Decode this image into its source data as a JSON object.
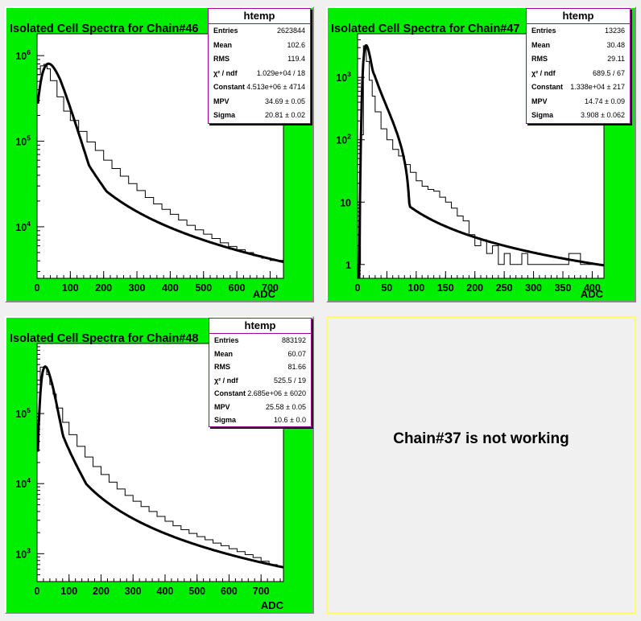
{
  "canvas": {
    "background": "#f0f0f0",
    "pad_color": "#00ee00",
    "frame_color": "#ffffff",
    "curve_color": "#000000",
    "statbox_border": "#a000a0"
  },
  "chart_data": [
    {
      "type": "histogram",
      "title": "Isolated Cell Spectra for Chain#46",
      "xlabel": "ADC",
      "xlim": [
        0,
        740
      ],
      "xticks": [
        0,
        100,
        200,
        300,
        400,
        500,
        600,
        700
      ],
      "xtick_labels": [
        "0",
        "100",
        "200",
        "300",
        "400",
        "500",
        "600",
        "700"
      ],
      "yscale": "log",
      "ylim": [
        2500,
        1800000
      ],
      "yticks": [
        10000,
        100000,
        1000000
      ],
      "ytick_labels": [
        "10^4",
        "10^5",
        "10^6"
      ],
      "hist_bins": [
        0,
        10,
        20,
        30,
        40,
        60,
        80,
        100,
        125,
        150,
        175,
        200,
        225,
        250,
        275,
        300,
        325,
        350,
        375,
        400,
        425,
        450,
        475,
        500,
        525,
        550,
        575,
        600,
        625,
        650,
        675,
        700,
        740
      ],
      "hist_counts": [
        600000,
        760000,
        790000,
        700000,
        510000,
        330000,
        225000,
        175000,
        130000,
        98000,
        78000,
        60000,
        48000,
        39000,
        32000,
        26500,
        22000,
        18500,
        16000,
        14000,
        12000,
        10400,
        9200,
        8200,
        7300,
        6500,
        5900,
        5400,
        5000,
        4600,
        4300,
        4050
      ],
      "fit": {
        "function": "landau",
        "constant": 4513000,
        "mpv": 34.69,
        "sigma": 20.81,
        "tail_coefficient": 0.75
      },
      "stats": {
        "title": "htemp",
        "rows": [
          {
            "label": "Entries",
            "value": "2623844"
          },
          {
            "label": "Mean",
            "value": "102.6"
          },
          {
            "label": "RMS",
            "value": "119.4"
          },
          {
            "label": "χ² / ndf",
            "value": "1.029e+04 / 18"
          },
          {
            "label": "Constant",
            "value": "4.513e+06 ± 4714"
          },
          {
            "label": "MPV",
            "value": "34.69 ± 0.05"
          },
          {
            "label": "Sigma",
            "value": "20.81 ± 0.02"
          }
        ]
      }
    },
    {
      "type": "histogram",
      "title": "Isolated Cell Spectra for Chain#47",
      "xlabel": "ADC",
      "xlim": [
        0,
        420
      ],
      "xticks": [
        0,
        50,
        100,
        150,
        200,
        250,
        300,
        350,
        400
      ],
      "xtick_labels": [
        "0",
        "50",
        "100",
        "150",
        "200",
        "250",
        "300",
        "350",
        "400"
      ],
      "yscale": "log",
      "ylim": [
        0.6,
        5000
      ],
      "yticks": [
        1,
        10,
        100,
        1000
      ],
      "ytick_labels": [
        "1",
        "10",
        "10^2",
        "10^3"
      ],
      "hist_bins": [
        0,
        5,
        10,
        15,
        20,
        25,
        30,
        40,
        50,
        60,
        70,
        80,
        90,
        100,
        110,
        120,
        130,
        140,
        150,
        160,
        170,
        180,
        190,
        200,
        210,
        220,
        230,
        240,
        250,
        260,
        270,
        280,
        290,
        300,
        320,
        340,
        360,
        380,
        400,
        420
      ],
      "hist_counts": [
        1.0,
        120,
        3200,
        1800,
        900,
        500,
        280,
        150,
        100,
        70,
        55,
        40,
        30,
        22,
        18,
        16,
        15,
        12,
        10,
        8,
        6,
        5,
        3,
        2,
        2.5,
        1.5,
        2,
        1,
        1.5,
        1,
        1,
        1.5,
        1,
        1,
        1,
        1,
        1.5,
        1,
        1
      ],
      "fit": {
        "function": "landau",
        "constant": 13380,
        "mpv": 14.74,
        "sigma": 3.908,
        "tail_coefficient": 0.7
      },
      "stats": {
        "title": "htemp",
        "rows": [
          {
            "label": "Entries",
            "value": "13236"
          },
          {
            "label": "Mean",
            "value": "30.48"
          },
          {
            "label": "RMS",
            "value": "29.11"
          },
          {
            "label": "χ² / ndf",
            "value": "689.5 / 67"
          },
          {
            "label": "Constant",
            "value": "1.338e+04 ± 217"
          },
          {
            "label": "MPV",
            "value": "14.74 ± 0.09"
          },
          {
            "label": "Sigma",
            "value": "3.908 ± 0.062"
          }
        ]
      }
    },
    {
      "type": "histogram",
      "title": "Isolated Cell Spectra for Chain#48",
      "xlabel": "ADC",
      "xlim": [
        0,
        770
      ],
      "xticks": [
        0,
        100,
        200,
        300,
        400,
        500,
        600,
        700
      ],
      "xtick_labels": [
        "0",
        "100",
        "200",
        "300",
        "400",
        "500",
        "600",
        "700"
      ],
      "yscale": "log",
      "ylim": [
        400,
        1000000
      ],
      "yticks": [
        1000,
        10000,
        100000
      ],
      "ytick_labels": [
        "10^3",
        "10^4",
        "10^5"
      ],
      "hist_bins": [
        0,
        10,
        20,
        30,
        40,
        50,
        60,
        80,
        100,
        125,
        150,
        175,
        200,
        225,
        250,
        275,
        300,
        325,
        350,
        375,
        400,
        425,
        450,
        475,
        500,
        525,
        550,
        575,
        600,
        625,
        650,
        675,
        700,
        725,
        750,
        770
      ],
      "hist_counts": [
        260000,
        460000,
        450000,
        360000,
        260000,
        190000,
        120000,
        75000,
        50000,
        34000,
        24000,
        17500,
        13500,
        10500,
        8400,
        6800,
        5600,
        4700,
        4000,
        3400,
        2900,
        2500,
        2200,
        1950,
        1750,
        1580,
        1420,
        1300,
        1180,
        1070,
        970,
        880,
        780,
        700,
        650
      ],
      "fit": {
        "function": "landau",
        "constant": 2685000,
        "mpv": 25.58,
        "sigma": 10.6,
        "tail_coefficient": 0.85
      },
      "stats": {
        "title": "htemp",
        "rows": [
          {
            "label": "Entries",
            "value": "883192"
          },
          {
            "label": "Mean",
            "value": "60.07"
          },
          {
            "label": "RMS",
            "value": "81.66"
          },
          {
            "label": "χ² / ndf",
            "value": "525.5 / 19"
          },
          {
            "label": "Constant",
            "value": "2.685e+06 ± 6020"
          },
          {
            "label": "MPV",
            "value": "25.58 ± 0.05"
          },
          {
            "label": "Sigma",
            "value": "10.6 ± 0.0"
          }
        ]
      }
    }
  ],
  "notice": {
    "text": "Chain#37 is not working"
  }
}
